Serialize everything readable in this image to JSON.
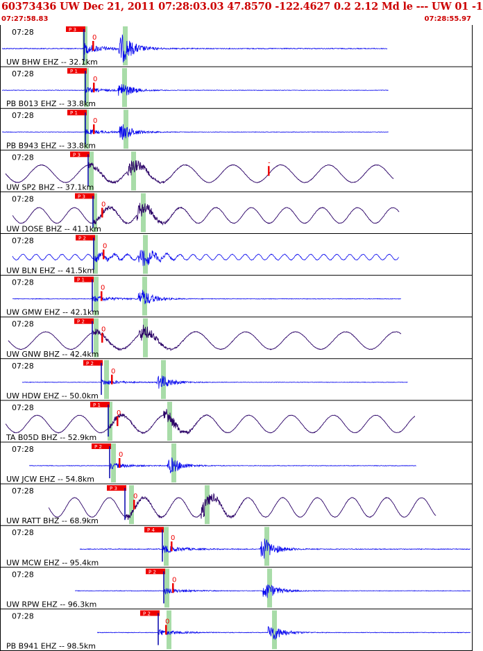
{
  "header": {
    "title": "60373436 UW Dec 21, 2011 07:28:03.03   47.8570 -122.4627  0.2 2.12 Md le --- UW 01  -1",
    "start_time": "07:27:58.83",
    "end_time": "07:28:55.97"
  },
  "colors": {
    "trace_ehz": "#0000ee",
    "trace_bhz": "#2a0066",
    "pick_flag": "#ee0000",
    "window": "#a8dca8",
    "header_text": "#cc0000",
    "grid": "#000000"
  },
  "panels": [
    {
      "time_label": "07:28",
      "station": "UW BHW EHZ -- 32.1km",
      "pick_label": "P 3",
      "s_label": "0",
      "kind": "ehz"
    },
    {
      "time_label": "07:28",
      "station": "PB B013 EHZ -- 33.8km",
      "pick_label": "P 1",
      "s_label": "0",
      "kind": "ehz"
    },
    {
      "time_label": "07:28",
      "station": "PB B943 EHZ -- 33.8km",
      "pick_label": "P 1",
      "s_label": "0",
      "kind": "ehz"
    },
    {
      "time_label": "07:28",
      "station": "UW SP2 BHZ -- 37.1km",
      "pick_label": "P 3",
      "s_label": "-",
      "kind": "bhz"
    },
    {
      "time_label": "07:28",
      "station": "UW DOSE BHZ -- 41.1km",
      "pick_label": "P 3",
      "s_label": "0",
      "kind": "bhz"
    },
    {
      "time_label": "07:28",
      "station": "UW BLN EHZ -- 41.5km",
      "pick_label": "P 2",
      "s_label": "0",
      "kind": "ehz"
    },
    {
      "time_label": "07:28",
      "station": "UW GMW EHZ -- 42.1km",
      "pick_label": "P 1",
      "s_label": "0",
      "kind": "ehz"
    },
    {
      "time_label": "07:28",
      "station": "UW GNW BHZ -- 42.4km",
      "pick_label": "P 2",
      "s_label": "0",
      "kind": "bhz"
    },
    {
      "time_label": "07:28",
      "station": "UW HDW EHZ -- 50.0km",
      "pick_label": "P 2",
      "s_label": "0",
      "kind": "ehz"
    },
    {
      "time_label": "07:28",
      "station": "TA B05D BHZ -- 52.9km",
      "pick_label": "P 1",
      "s_label": "0",
      "kind": "bhz"
    },
    {
      "time_label": "07:28",
      "station": "UW JCW EHZ -- 54.8km",
      "pick_label": "P 2",
      "s_label": "0",
      "kind": "ehz"
    },
    {
      "time_label": "07:28",
      "station": "UW RATT BHZ -- 68.9km",
      "pick_label": "P 3",
      "s_label": "0",
      "kind": "bhz"
    },
    {
      "time_label": "07:28",
      "station": "UW MCW EHZ -- 95.4km",
      "pick_label": "P 4",
      "s_label": "0",
      "kind": "ehz"
    },
    {
      "time_label": "07:28",
      "station": "UW RPW EHZ -- 96.3km",
      "pick_label": "P 2",
      "s_label": "0",
      "kind": "ehz"
    },
    {
      "time_label": "07:28",
      "station": "PB B941 EHZ -- 98.5km",
      "pick_label": "P 2",
      "s_label": "0",
      "kind": "ehz"
    }
  ]
}
